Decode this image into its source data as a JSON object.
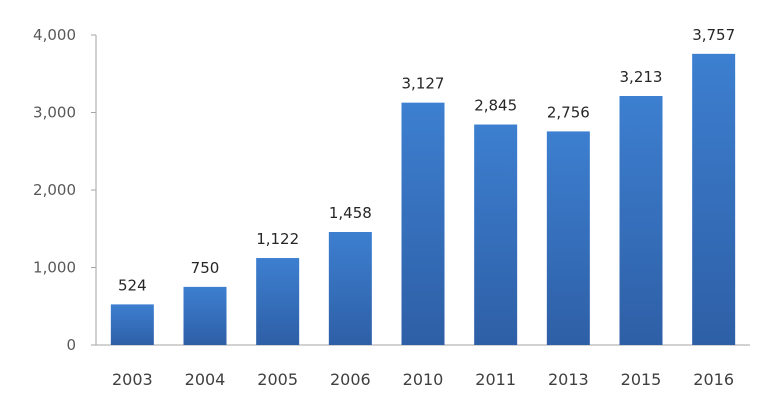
{
  "chart_data": {
    "type": "bar",
    "categories": [
      "2003",
      "2004",
      "2005",
      "2006",
      "2010",
      "2011",
      "2013",
      "2015",
      "2016"
    ],
    "values": [
      524,
      750,
      1122,
      1458,
      3127,
      2845,
      2756,
      3213,
      3757
    ],
    "data_labels": [
      "524",
      "750",
      "1,122",
      "1,458",
      "3,127",
      "2,845",
      "2,756",
      "3,213",
      "3,757"
    ],
    "y_ticks": [
      0,
      1000,
      2000,
      3000,
      4000
    ],
    "y_tick_labels": [
      "0",
      "1,000",
      "2,000",
      "3,000",
      "4,000"
    ],
    "ylim": [
      0,
      4000
    ],
    "grid": false,
    "legend": "none",
    "colors": {
      "bar_top": "#3d7fd0",
      "bar_bottom": "#2e5fa6",
      "axis": "#a6a6a6"
    }
  }
}
